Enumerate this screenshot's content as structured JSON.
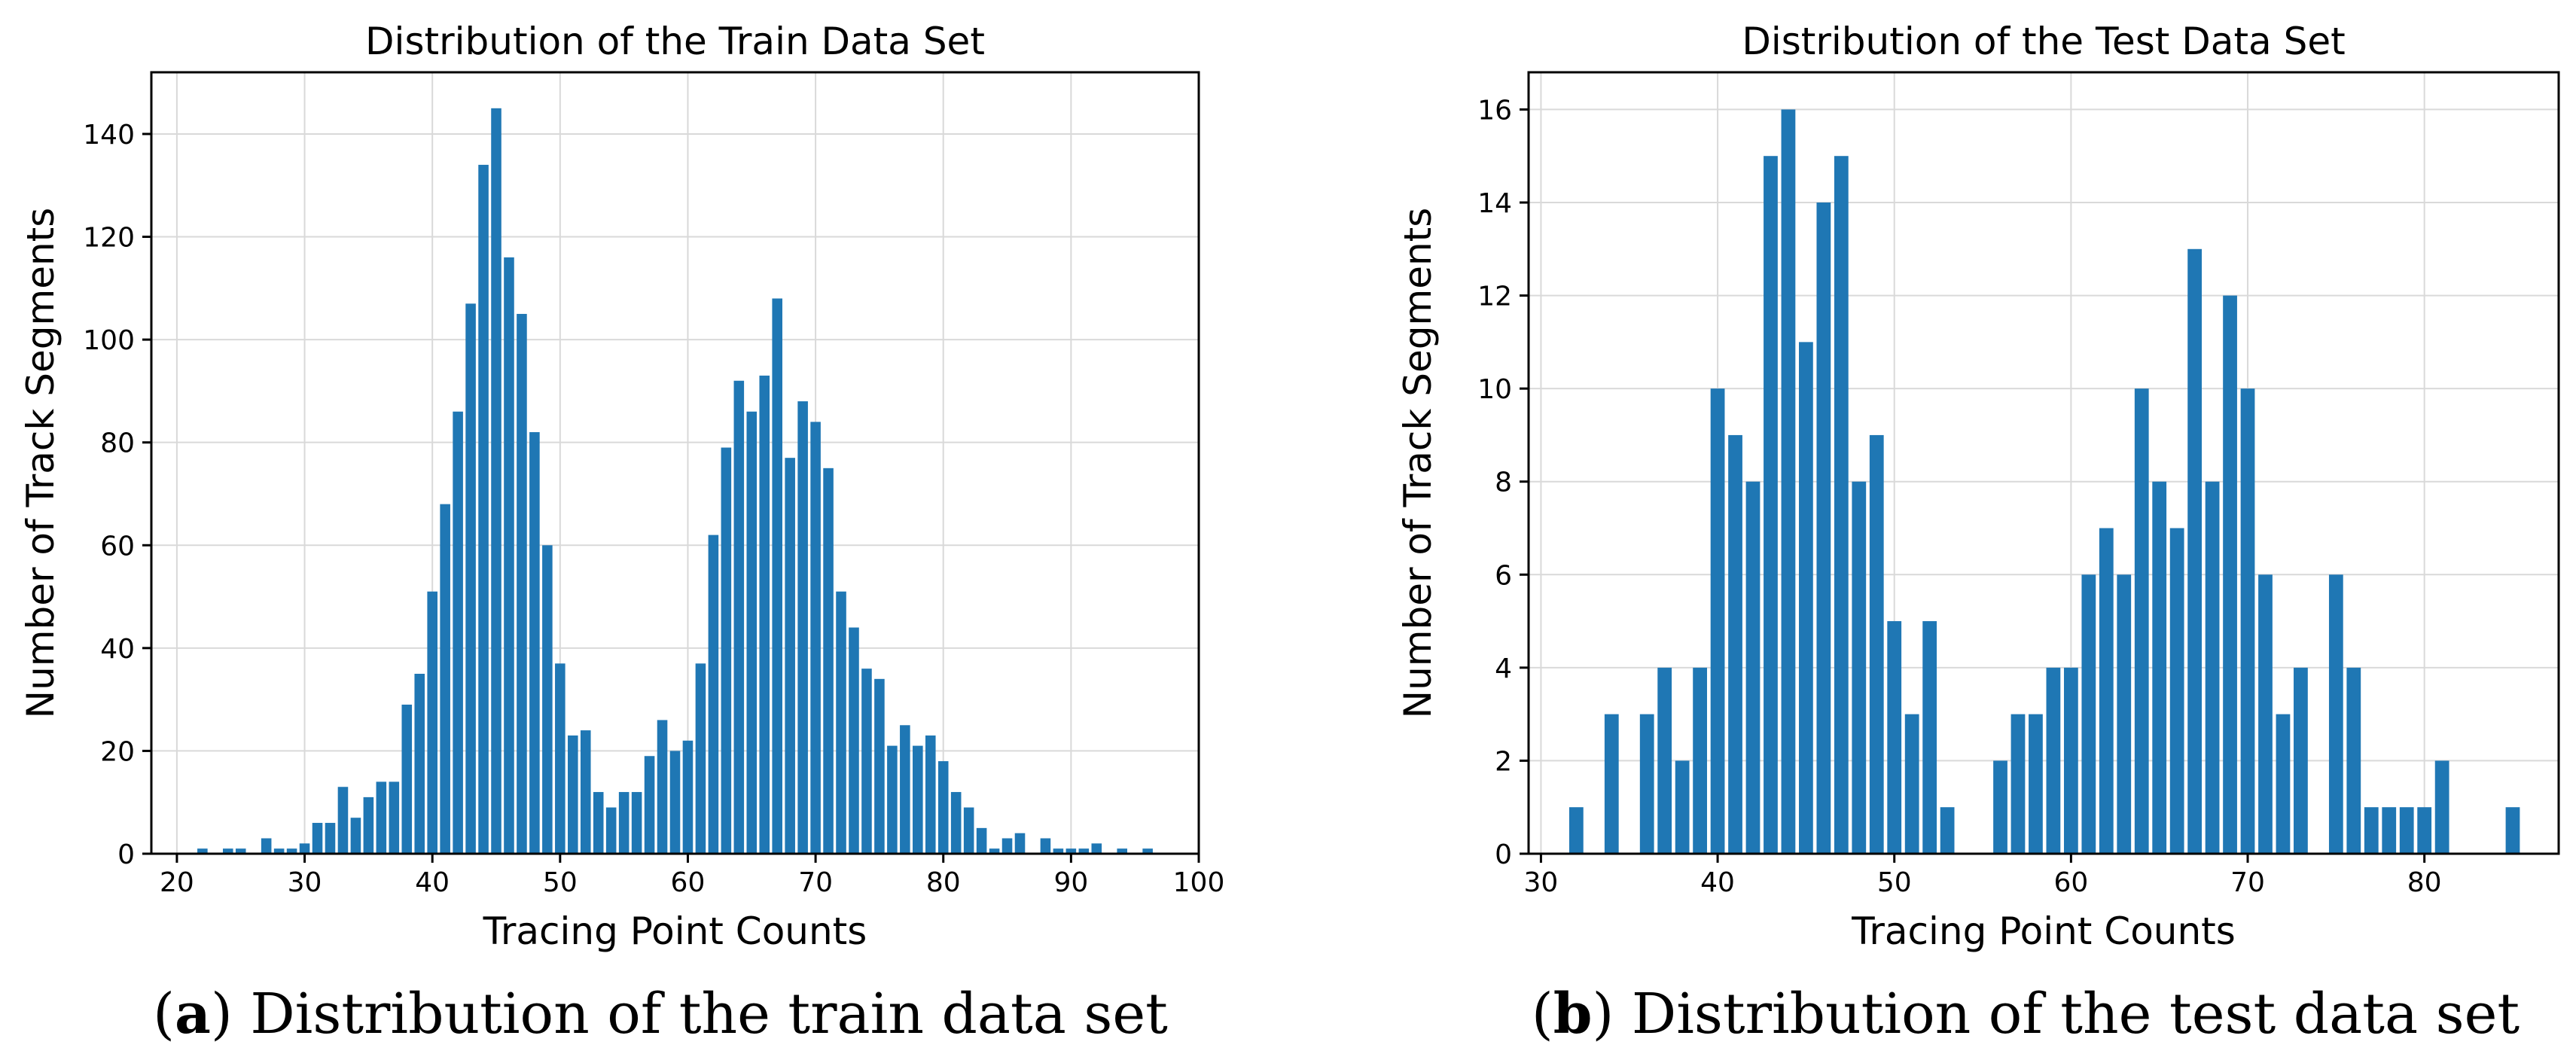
{
  "chart_data": [
    {
      "type": "bar",
      "title": "Distribution of the Train Data Set",
      "xlabel": "Tracing Point Counts",
      "ylabel": "Number of Track Segments",
      "xlim": [
        18,
        100
      ],
      "ylim": [
        0,
        152
      ],
      "xticks": [
        20,
        30,
        40,
        50,
        60,
        70,
        80,
        90,
        100
      ],
      "yticks": [
        0,
        20,
        40,
        60,
        80,
        100,
        120,
        140
      ],
      "grid": true,
      "caption_letter": "a",
      "caption_text": "Distribution of the train data set",
      "x": [
        22,
        24,
        25,
        27,
        28,
        29,
        30,
        31,
        32,
        33,
        34,
        35,
        36,
        37,
        38,
        39,
        40,
        41,
        42,
        43,
        44,
        45,
        46,
        47,
        48,
        49,
        50,
        51,
        52,
        53,
        54,
        55,
        56,
        57,
        58,
        59,
        60,
        61,
        62,
        63,
        64,
        65,
        66,
        67,
        68,
        69,
        70,
        71,
        72,
        73,
        74,
        75,
        76,
        77,
        78,
        79,
        80,
        81,
        82,
        83,
        84,
        85,
        86,
        88,
        89,
        90,
        91,
        92,
        94,
        96
      ],
      "values": [
        1,
        1,
        1,
        3,
        1,
        1,
        2,
        6,
        6,
        13,
        7,
        11,
        14,
        14,
        29,
        35,
        51,
        68,
        86,
        107,
        134,
        145,
        116,
        105,
        82,
        60,
        37,
        23,
        24,
        12,
        9,
        12,
        12,
        19,
        26,
        20,
        22,
        37,
        62,
        79,
        92,
        86,
        93,
        108,
        77,
        88,
        84,
        75,
        51,
        44,
        36,
        34,
        21,
        25,
        21,
        23,
        18,
        12,
        9,
        5,
        1,
        3,
        4,
        3,
        1,
        1,
        1,
        2,
        1,
        1
      ]
    },
    {
      "type": "bar",
      "title": "Distribution of the Test Data Set",
      "xlabel": "Tracing Point Counts",
      "ylabel": "Number of Track Segments",
      "xlim": [
        29.3,
        87.6
      ],
      "ylim": [
        0,
        16.8
      ],
      "xticks": [
        30,
        40,
        50,
        60,
        70,
        80
      ],
      "yticks": [
        0,
        2,
        4,
        6,
        8,
        10,
        12,
        14,
        16
      ],
      "grid": true,
      "caption_letter": "b",
      "caption_text": "Distribution of the test data set",
      "x": [
        32,
        34,
        36,
        37,
        38,
        39,
        40,
        41,
        42,
        43,
        44,
        45,
        46,
        47,
        48,
        49,
        50,
        51,
        52,
        53,
        56,
        57,
        58,
        59,
        60,
        61,
        62,
        63,
        64,
        65,
        66,
        67,
        68,
        69,
        70,
        71,
        72,
        73,
        75,
        76,
        77,
        78,
        79,
        80,
        81,
        85
      ],
      "values": [
        1,
        3,
        3,
        4,
        2,
        4,
        10,
        9,
        8,
        15,
        16,
        11,
        14,
        15,
        8,
        9,
        5,
        3,
        5,
        1,
        2,
        3,
        3,
        4,
        4,
        6,
        7,
        6,
        10,
        8,
        7,
        13,
        8,
        12,
        10,
        6,
        3,
        4,
        6,
        4,
        1,
        1,
        1,
        1,
        2,
        1
      ]
    }
  ]
}
